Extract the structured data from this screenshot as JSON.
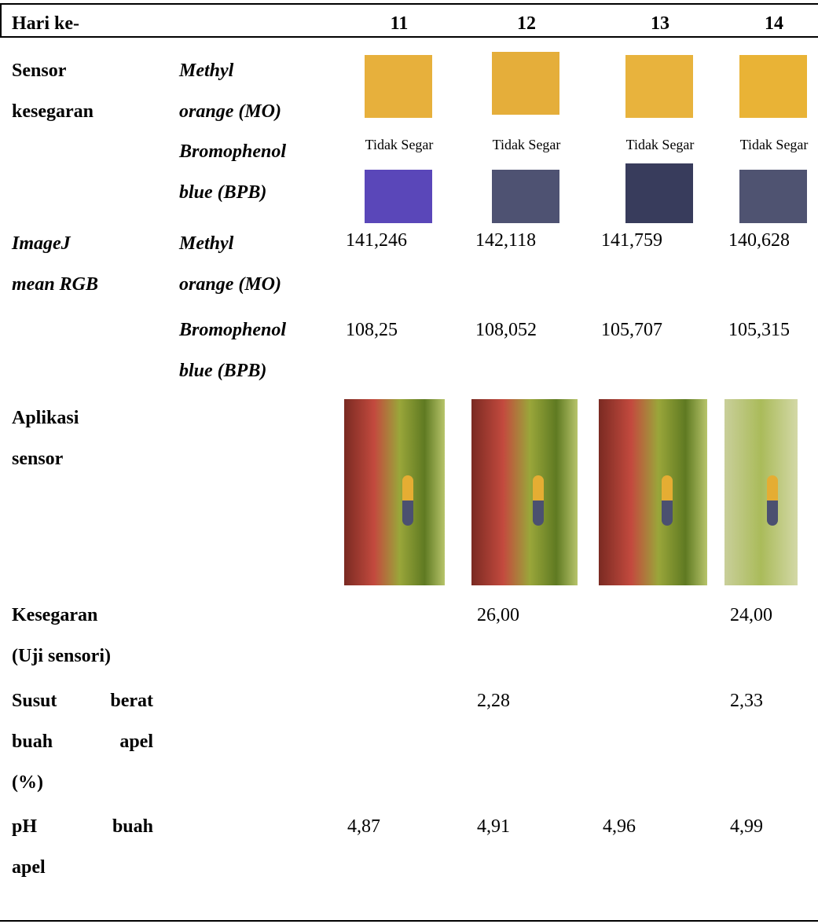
{
  "header": {
    "label": "Hari ke-",
    "days": [
      "11",
      "12",
      "13",
      "14"
    ]
  },
  "sensor": {
    "label": [
      "Sensor",
      "kesegaran"
    ],
    "mo_label": [
      "Methyl",
      "orange (MO)"
    ],
    "bpb_label": [
      "Bromophenol",
      "blue (BPB)"
    ],
    "status": [
      "Tidak Segar",
      "Tidak Segar",
      "Tidak Segar",
      "Tidak Segar"
    ]
  },
  "imagej": {
    "label": [
      "ImageJ",
      "mean RGB"
    ],
    "mo_label": [
      "Methyl",
      "orange (MO)"
    ],
    "bpb_label": [
      "Bromophenol",
      "blue (BPB)"
    ],
    "mo": [
      "141,246",
      "142,118",
      "141,759",
      "140,628"
    ],
    "bpb": [
      "108,25",
      "108,052",
      "105,707",
      "105,315"
    ]
  },
  "aplikasi": {
    "label": [
      "Aplikasi",
      "sensor"
    ]
  },
  "kesegaran": {
    "label": [
      "Kesegaran",
      "(Uji sensori)"
    ],
    "values": [
      null,
      "26,00",
      null,
      "24,00"
    ]
  },
  "susut": {
    "label": [
      "Susut berat",
      "buah apel",
      "(%)"
    ],
    "values": [
      null,
      "2,28",
      null,
      "2,33"
    ]
  },
  "ph": {
    "label": [
      "pH buah",
      "apel"
    ],
    "values": [
      "4,87",
      "4,91",
      "4,96",
      "4,99"
    ]
  }
}
